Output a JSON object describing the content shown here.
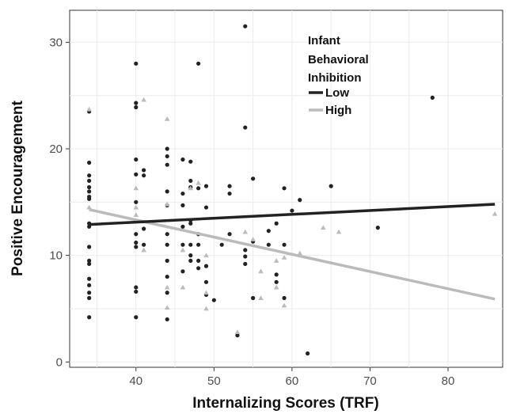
{
  "chart_data": {
    "type": "scatter",
    "xlabel": "Internalizing Scores (TRF)",
    "ylabel": "Positive Encouragement",
    "xlim": [
      31.5,
      87
    ],
    "ylim": [
      -0.5,
      33
    ],
    "x_ticks": [
      40,
      50,
      60,
      70,
      80
    ],
    "y_ticks": [
      0,
      10,
      20,
      30
    ],
    "grid": true,
    "legend": {
      "title_lines": [
        "Infant",
        "Behavioral",
        "Inhibition"
      ],
      "placement": "top-center-right"
    },
    "series": [
      {
        "name": "Low",
        "color": "#222222",
        "marker": "circle",
        "points": [
          [
            34,
            23.5
          ],
          [
            34,
            18.7
          ],
          [
            34,
            17.5
          ],
          [
            34,
            17
          ],
          [
            34,
            16.4
          ],
          [
            34,
            16
          ],
          [
            34,
            15.5
          ],
          [
            34,
            15.3
          ],
          [
            34,
            13
          ],
          [
            34,
            12.7
          ],
          [
            34,
            10.8
          ],
          [
            34,
            9.5
          ],
          [
            34,
            9.2
          ],
          [
            34,
            7.8
          ],
          [
            34,
            7.2
          ],
          [
            34,
            6.5
          ],
          [
            34,
            6
          ],
          [
            34,
            4.2
          ],
          [
            40,
            28
          ],
          [
            40,
            24.3
          ],
          [
            40,
            23.9
          ],
          [
            40,
            19
          ],
          [
            40,
            17.6
          ],
          [
            40,
            15
          ],
          [
            40,
            13.2
          ],
          [
            40,
            12
          ],
          [
            40,
            11.2
          ],
          [
            40,
            10.8
          ],
          [
            40,
            7
          ],
          [
            40,
            6.6
          ],
          [
            40,
            4.2
          ],
          [
            41,
            18
          ],
          [
            41,
            17.5
          ],
          [
            41,
            12.5
          ],
          [
            41,
            11
          ],
          [
            44,
            20
          ],
          [
            44,
            19.3
          ],
          [
            44,
            18.5
          ],
          [
            44,
            16
          ],
          [
            44,
            14.7
          ],
          [
            44,
            12
          ],
          [
            44,
            11
          ],
          [
            44,
            9.5
          ],
          [
            44,
            8
          ],
          [
            44,
            6.5
          ],
          [
            44,
            4
          ],
          [
            46,
            19
          ],
          [
            46,
            15.8
          ],
          [
            46,
            14.7
          ],
          [
            46,
            12.7
          ],
          [
            46,
            11
          ],
          [
            46,
            8.5
          ],
          [
            47,
            18.8
          ],
          [
            47,
            17
          ],
          [
            47,
            16.4
          ],
          [
            47,
            13.3
          ],
          [
            47,
            13
          ],
          [
            47,
            11
          ],
          [
            47,
            10
          ],
          [
            47,
            9.5
          ],
          [
            48,
            28
          ],
          [
            48,
            16.3
          ],
          [
            48,
            12
          ],
          [
            48,
            11
          ],
          [
            48,
            9.5
          ],
          [
            48,
            8.8
          ],
          [
            49,
            16.5
          ],
          [
            49,
            14.5
          ],
          [
            49,
            9
          ],
          [
            49,
            7.5
          ],
          [
            49,
            6.3
          ],
          [
            50,
            5.8
          ],
          [
            51,
            11
          ],
          [
            52,
            16.5
          ],
          [
            52,
            15.8
          ],
          [
            52,
            12
          ],
          [
            53,
            2.5
          ],
          [
            54,
            31.5
          ],
          [
            54,
            22
          ],
          [
            54,
            10.5
          ],
          [
            54,
            9.9
          ],
          [
            54,
            9.2
          ],
          [
            55,
            17.2
          ],
          [
            55,
            11.3
          ],
          [
            55,
            6
          ],
          [
            57,
            12.3
          ],
          [
            57,
            11
          ],
          [
            58,
            13
          ],
          [
            58,
            8.2
          ],
          [
            58,
            7.5
          ],
          [
            59,
            16.3
          ],
          [
            59,
            11
          ],
          [
            59,
            6
          ],
          [
            60,
            14.2
          ],
          [
            61,
            15.2
          ],
          [
            62,
            0.8
          ],
          [
            65,
            16.5
          ],
          [
            71,
            12.6
          ],
          [
            78,
            24.8
          ]
        ],
        "fit": {
          "x": [
            34,
            86
          ],
          "y": [
            12.9,
            14.8
          ]
        }
      },
      {
        "name": "High",
        "color": "#bbbbbb",
        "marker": "triangle",
        "points": [
          [
            34,
            23.7
          ],
          [
            34,
            14.5
          ],
          [
            40,
            16.3
          ],
          [
            40,
            14.5
          ],
          [
            40,
            13.8
          ],
          [
            40,
            13.2
          ],
          [
            41,
            24.6
          ],
          [
            41,
            10.5
          ],
          [
            44,
            22.8
          ],
          [
            44,
            14.8
          ],
          [
            44,
            7
          ],
          [
            44,
            5.1
          ],
          [
            46,
            10.5
          ],
          [
            46,
            7
          ],
          [
            47,
            16.3
          ],
          [
            48,
            16.8
          ],
          [
            49,
            10
          ],
          [
            49,
            6.5
          ],
          [
            49,
            5
          ],
          [
            53,
            2.8
          ],
          [
            54,
            12.2
          ],
          [
            55,
            11.5
          ],
          [
            56,
            8.5
          ],
          [
            56,
            6
          ],
          [
            58,
            9.5
          ],
          [
            58,
            7
          ],
          [
            59,
            9.8
          ],
          [
            59,
            5.3
          ],
          [
            61,
            10.2
          ],
          [
            64,
            12.6
          ],
          [
            66,
            12.2
          ],
          [
            86,
            13.9
          ]
        ],
        "fit": {
          "x": [
            34,
            86
          ],
          "y": [
            14.3,
            5.9
          ]
        }
      }
    ]
  }
}
